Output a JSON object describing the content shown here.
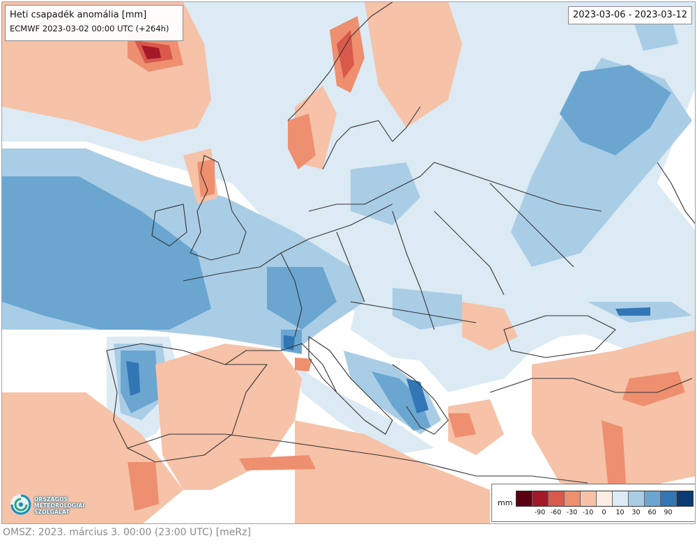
{
  "header": {
    "title": "Heti csapadék anomália [mm]",
    "subtitle": "ECMWF 2023-03-02 00:00 UTC (+264h)"
  },
  "date_range": "2023-03-06 - 2023-03-12",
  "legend": {
    "unit": "mm",
    "classes": [
      {
        "color": "#5a0012",
        "label": ""
      },
      {
        "color": "#a3192a",
        "label": "-90"
      },
      {
        "color": "#d9594a",
        "label": "-60"
      },
      {
        "color": "#ee8f70",
        "label": "-30"
      },
      {
        "color": "#f6c2a8",
        "label": "-10"
      },
      {
        "color": "#fdece2",
        "label": "0"
      },
      {
        "color": "#dceaf4",
        "label": "10"
      },
      {
        "color": "#aacde6",
        "label": "30"
      },
      {
        "color": "#6aa6d0",
        "label": "60"
      },
      {
        "color": "#3276b6",
        "label": "90"
      },
      {
        "color": "#0c3a73",
        "label": ""
      }
    ]
  },
  "logo": {
    "lines": [
      "ORSZÁGOS",
      "METEOROLÓGIAI",
      "SZOLGÁLAT"
    ]
  },
  "footer": "OMSZ: 2023. március 3. 00:00 (23:00 UTC) [meRz]",
  "colors": {
    "dry_light": "#f6c2a8",
    "dry_medium": "#ee8f70",
    "dry_strong": "#d9594a",
    "dry_extreme": "#a3192a",
    "wet_light": "#dceaf4",
    "wet_medium": "#aacde6",
    "wet_strong": "#6aa6d0",
    "wet_heavy": "#3276b6",
    "border_line": "#333333"
  }
}
